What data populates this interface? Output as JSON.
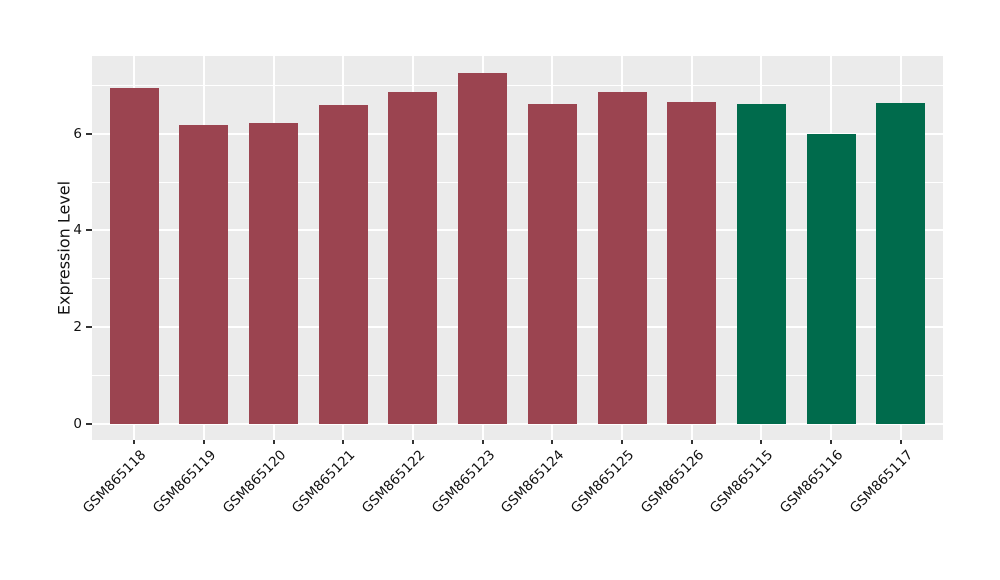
{
  "chart_data": {
    "type": "bar",
    "ylabel": "Expression Level",
    "xlabel": "",
    "categories": [
      "GSM865118",
      "GSM865119",
      "GSM865120",
      "GSM865121",
      "GSM865122",
      "GSM865123",
      "GSM865124",
      "GSM865125",
      "GSM865126",
      "GSM865115",
      "GSM865116",
      "GSM865117"
    ],
    "values": [
      6.95,
      6.17,
      6.21,
      6.6,
      6.85,
      7.25,
      6.62,
      6.87,
      6.66,
      6.62,
      6.0,
      6.64
    ],
    "bar_colors": [
      "#9B4450",
      "#9B4450",
      "#9B4450",
      "#9B4450",
      "#9B4450",
      "#9B4450",
      "#9B4450",
      "#9B4450",
      "#9B4450",
      "#006B4C",
      "#006B4C",
      "#006B4C"
    ],
    "color_legend": {
      "maroon_group": {
        "color": "#9B4450",
        "categories": [
          "GSM865118",
          "GSM865119",
          "GSM865120",
          "GSM865121",
          "GSM865122",
          "GSM865123",
          "GSM865124",
          "GSM865125",
          "GSM865126"
        ]
      },
      "green_group": {
        "color": "#006B4C",
        "categories": [
          "GSM865115",
          "GSM865116",
          "GSM865117"
        ]
      }
    },
    "yticks": [
      0,
      2,
      4,
      6
    ],
    "minor_yticks": [
      1,
      3,
      5,
      7
    ],
    "ylim": [
      -0.33,
      7.6
    ],
    "grid": true,
    "legend_position": "none",
    "panel_bg": "#EBEBEB",
    "grid_color": "#FFFFFF",
    "tick_color": "#333333"
  }
}
